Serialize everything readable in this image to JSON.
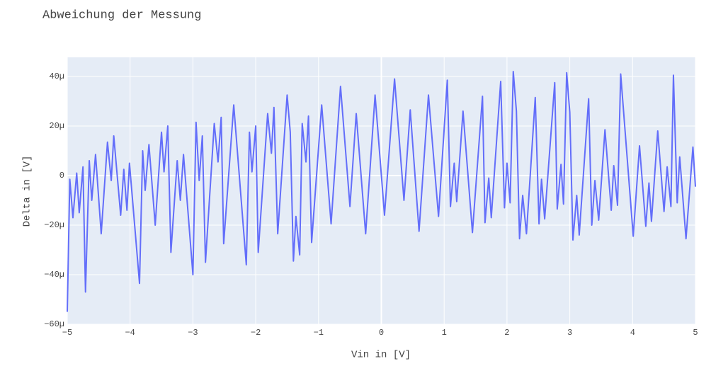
{
  "chart_data": {
    "type": "line",
    "title": "Abweichung der Messung",
    "x_label": "Vin in [V]",
    "y_label": "Delta in [V]",
    "xlim": [
      -5,
      5
    ],
    "ylim": [
      -6e-05,
      4.77e-05
    ],
    "xticks": [
      {
        "value": -5,
        "label": "−5"
      },
      {
        "value": -4,
        "label": "−4"
      },
      {
        "value": -3,
        "label": "−3"
      },
      {
        "value": -2,
        "label": "−2"
      },
      {
        "value": -1,
        "label": "−1"
      },
      0,
      1,
      2,
      3,
      4,
      5
    ],
    "yticks": [
      {
        "value": -6e-05,
        "label": "−60µ"
      },
      {
        "value": -4e-05,
        "label": "−40µ"
      },
      {
        "value": -2e-05,
        "label": "−20µ"
      },
      0,
      {
        "value": 2e-05,
        "label": "20µ"
      },
      {
        "value": 4e-05,
        "label": "40µ"
      }
    ],
    "grid": true,
    "series": [
      {
        "color": "#636efa",
        "x": [
          -5,
          -4.96,
          -4.91,
          -4.85,
          -4.81,
          -4.75,
          -4.71,
          -4.65,
          -4.61,
          -4.55,
          -4.46,
          -4.36,
          -4.3,
          -4.26,
          -4.15,
          -4.1,
          -4.05,
          -4.01,
          -3.85,
          -3.8,
          -3.76,
          -3.7,
          -3.6,
          -3.5,
          -3.46,
          -3.4,
          -3.35,
          -3.25,
          -3.2,
          -3.15,
          -3,
          -2.95,
          -2.9,
          -2.85,
          -2.8,
          -2.66,
          -2.6,
          -2.55,
          -2.51,
          -2.35,
          -2.15,
          -2.1,
          -2.06,
          -2,
          -1.96,
          -1.81,
          -1.75,
          -1.71,
          -1.65,
          -1.5,
          -1.45,
          -1.4,
          -1.36,
          -1.3,
          -1.26,
          -1.2,
          -1.16,
          -1.11,
          -0.95,
          -0.8,
          -0.65,
          -0.5,
          -0.4,
          -0.25,
          -0.1,
          0.05,
          0.21,
          0.36,
          0.46,
          0.6,
          0.75,
          0.91,
          1.05,
          1.1,
          1.16,
          1.2,
          1.3,
          1.45,
          1.61,
          1.65,
          1.71,
          1.75,
          1.9,
          1.96,
          2,
          2.05,
          2.1,
          2.15,
          2.2,
          2.25,
          2.31,
          2.45,
          2.51,
          2.55,
          2.6,
          2.76,
          2.8,
          2.86,
          2.9,
          2.95,
          3,
          3.05,
          3.11,
          3.15,
          3.3,
          3.35,
          3.4,
          3.46,
          3.56,
          3.66,
          3.7,
          3.76,
          3.81,
          4.01,
          4.11,
          4.21,
          4.26,
          4.3,
          4.4,
          4.5,
          4.55,
          4.61,
          4.65,
          4.71,
          4.75,
          4.85,
          4.96,
          5
        ],
        "values": [
          -5.5e-05,
          -1.5e-06,
          -1.7e-05,
          1e-06,
          -1.5e-05,
          3.5e-06,
          -4.7e-05,
          6e-06,
          -1e-05,
          8.5e-06,
          -2.35e-05,
          1.35e-05,
          -2e-06,
          1.6e-05,
          -1.6e-05,
          2.5e-06,
          -1.4e-05,
          5e-06,
          -4.35e-05,
          1e-05,
          -6e-06,
          1.25e-05,
          -2e-05,
          1.75e-05,
          1.5e-06,
          2e-05,
          -3.1e-05,
          6e-06,
          -1e-05,
          8.5e-06,
          -4e-05,
          2.15e-05,
          -2e-06,
          1.6e-05,
          -3.5e-05,
          2.1e-05,
          5.5e-06,
          2.35e-05,
          -2.75e-05,
          2.85e-05,
          -3.6e-05,
          1.75e-05,
          1.5e-06,
          2e-05,
          -3.1e-05,
          2.5e-05,
          9e-06,
          2.75e-05,
          -2.35e-05,
          3.25e-05,
          1.75e-05,
          -3.45e-05,
          -1.65e-05,
          -3.2e-05,
          2.1e-05,
          5.5e-06,
          2.4e-05,
          -2.7e-05,
          2.85e-05,
          -1.95e-05,
          3.6e-05,
          -1.25e-05,
          2.5e-05,
          -2.35e-05,
          3.25e-05,
          -1.6e-05,
          3.9e-05,
          -1e-05,
          2.65e-05,
          -2.25e-05,
          3.25e-05,
          -1.65e-05,
          3.85e-05,
          -1.25e-05,
          5e-06,
          -1.05e-05,
          2.6e-05,
          -2.3e-05,
          3.2e-05,
          -1.9e-05,
          -1e-06,
          -1.7e-05,
          3.8e-05,
          -1.3e-05,
          5e-06,
          -1.1e-05,
          4.2e-05,
          2.6e-05,
          -2.55e-05,
          -8e-06,
          -2.35e-05,
          3.15e-05,
          -1.95e-05,
          -1.5e-06,
          -1.75e-05,
          3.75e-05,
          -1.35e-05,
          4.5e-06,
          -1.15e-05,
          4.15e-05,
          2.55e-05,
          -2.6e-05,
          -8e-06,
          -2.4e-05,
          3.1e-05,
          -2e-05,
          -2e-06,
          -1.8e-05,
          1.85e-05,
          -1.4e-05,
          4e-06,
          -1.2e-05,
          4.1e-05,
          -2.45e-05,
          1.2e-05,
          -2.05e-05,
          -3e-06,
          -1.85e-05,
          1.8e-05,
          -1.45e-05,
          3.5e-06,
          -1.25e-05,
          4.05e-05,
          -1.1e-05,
          7.5e-06,
          -2.55e-05,
          1.15e-05,
          -4.5e-06
        ]
      }
    ]
  }
}
